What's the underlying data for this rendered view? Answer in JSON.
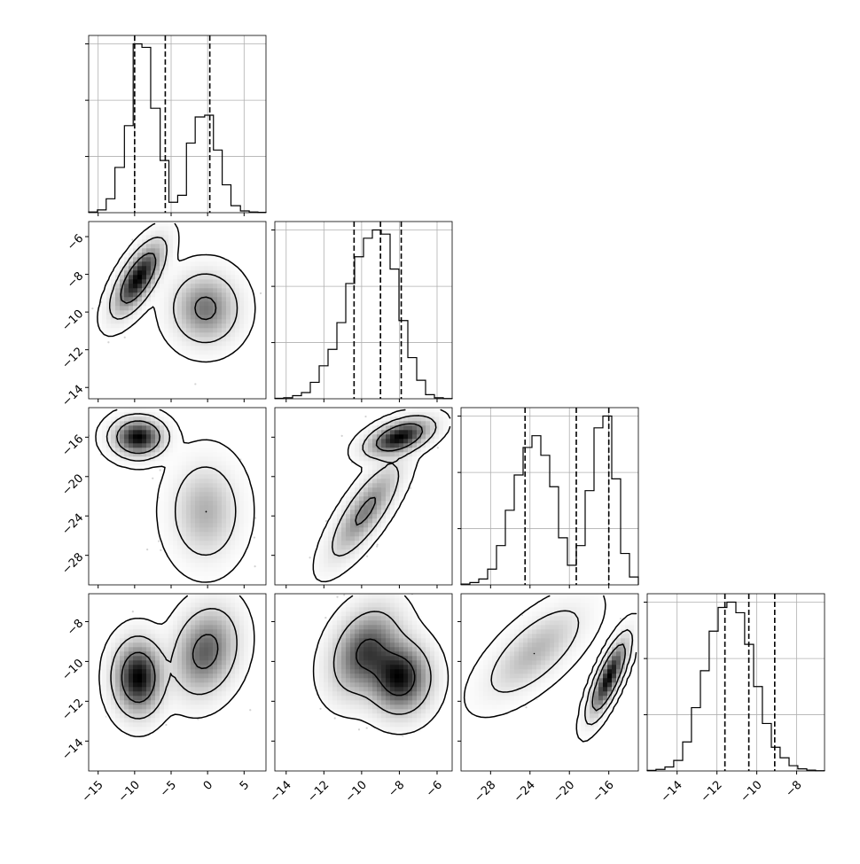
{
  "chart_data": {
    "type": "corner",
    "parameters": [
      {
        "index": 0,
        "range": [
          -16.3,
          8.0
        ],
        "ticks": [
          -15,
          -10,
          -5,
          0,
          5
        ],
        "tick_labels": [
          "−15",
          "−10",
          "−5",
          "0",
          "5"
        ],
        "quantiles": [
          -10.0,
          -5.8,
          0.3
        ]
      },
      {
        "index": 1,
        "range": [
          -14.6,
          -5.2
        ],
        "ticks": [
          -14,
          -12,
          -10,
          -8,
          -6
        ],
        "tick_labels": [
          "−14",
          "−12",
          "−10",
          "−8",
          "−6"
        ],
        "quantiles": [
          -10.4,
          -9.0,
          -7.9
        ]
      },
      {
        "index": 2,
        "range": [
          -31.0,
          -13.0
        ],
        "ticks": [
          -28,
          -24,
          -20,
          -16
        ],
        "tick_labels": [
          "−28",
          "−24",
          "−20",
          "−16"
        ],
        "quantiles": [
          -24.5,
          -19.3,
          -16.0
        ]
      },
      {
        "index": 3,
        "range": [
          -15.5,
          -6.6
        ],
        "ticks": [
          -14,
          -12,
          -10,
          -8
        ],
        "tick_labels": [
          "−14",
          "−12",
          "−10",
          "−8"
        ],
        "quantiles": [
          -11.6,
          -10.4,
          -9.1
        ]
      }
    ],
    "histograms": [
      {
        "param": 0,
        "bins": [
          -16.3,
          -15.1,
          -13.9,
          -12.7,
          -11.4,
          -10.2,
          -9.0,
          -7.8,
          -6.5,
          -5.3,
          -4.1,
          -2.9,
          -1.7,
          -0.4,
          0.8,
          2.0,
          3.2,
          4.5,
          5.7,
          6.9,
          8.0
        ],
        "counts": [
          2,
          8,
          40,
          130,
          250,
          485,
          475,
          300,
          150,
          30,
          50,
          200,
          275,
          280,
          180,
          80,
          20,
          5,
          2,
          1
        ]
      },
      {
        "param": 1,
        "bins": [
          -14.6,
          -14.13,
          -13.66,
          -13.19,
          -12.72,
          -12.25,
          -11.78,
          -11.31,
          -10.84,
          -10.37,
          -9.9,
          -9.43,
          -8.96,
          -8.49,
          -8.02,
          -7.55,
          -7.08,
          -6.61,
          -6.14,
          -5.67,
          -5.2
        ],
        "counts": [
          2,
          5,
          15,
          30,
          80,
          160,
          240,
          370,
          560,
          690,
          780,
          820,
          800,
          630,
          380,
          200,
          90,
          20,
          5,
          1
        ]
      },
      {
        "param": 2,
        "bins": [
          -31.0,
          -30.1,
          -29.2,
          -28.3,
          -27.4,
          -26.5,
          -25.6,
          -24.7,
          -23.8,
          -22.9,
          -22.0,
          -21.1,
          -20.2,
          -19.3,
          -18.4,
          -17.5,
          -16.6,
          -15.7,
          -14.8,
          -13.9,
          -13.0
        ],
        "counts": [
          2,
          6,
          15,
          40,
          100,
          190,
          280,
          350,
          380,
          330,
          250,
          120,
          50,
          100,
          240,
          400,
          430,
          270,
          80,
          20
        ]
      },
      {
        "param": 3,
        "bins": [
          -15.5,
          -15.06,
          -14.61,
          -14.17,
          -13.72,
          -13.28,
          -12.83,
          -12.39,
          -11.94,
          -11.5,
          -11.05,
          -10.61,
          -10.16,
          -9.72,
          -9.27,
          -8.83,
          -8.38,
          -7.94,
          -7.49,
          -7.05,
          -6.6
        ],
        "counts": [
          2,
          6,
          15,
          40,
          110,
          240,
          380,
          530,
          620,
          640,
          600,
          480,
          320,
          180,
          90,
          50,
          20,
          8,
          3,
          1
        ]
      }
    ],
    "pairs": [
      {
        "x_param": 0,
        "y_param": 1,
        "clusters": [
          {
            "cx": -9.5,
            "cy": -8.2,
            "sx": 1.8,
            "sy": 1.0,
            "rho": 0.7,
            "w": 0.52
          },
          {
            "cx": -0.3,
            "cy": -9.8,
            "sx": 2.4,
            "sy": 1.0,
            "rho": 0.0,
            "w": 0.48
          }
        ]
      },
      {
        "x_param": 0,
        "y_param": 2,
        "clusters": [
          {
            "cx": -9.5,
            "cy": -16.0,
            "sx": 1.8,
            "sy": 1.0,
            "rho": 0.0,
            "w": 0.52
          },
          {
            "cx": -0.3,
            "cy": -23.5,
            "sx": 2.4,
            "sy": 2.6,
            "rho": 0.0,
            "w": 0.48
          }
        ]
      },
      {
        "x_param": 1,
        "y_param": 2,
        "clusters": [
          {
            "cx": -8.0,
            "cy": -16.0,
            "sx": 0.9,
            "sy": 1.0,
            "rho": 0.5,
            "w": 0.52
          },
          {
            "cx": -9.8,
            "cy": -23.5,
            "sx": 1.0,
            "sy": 2.6,
            "rho": 0.8,
            "w": 0.48
          }
        ]
      },
      {
        "x_param": 0,
        "y_param": 3,
        "clusters": [
          {
            "cx": -9.5,
            "cy": -10.8,
            "sx": 1.8,
            "sy": 1.0,
            "rho": 0.0,
            "w": 0.52
          },
          {
            "cx": -0.3,
            "cy": -9.5,
            "sx": 2.4,
            "sy": 1.2,
            "rho": 0.2,
            "w": 0.48
          }
        ]
      },
      {
        "x_param": 1,
        "y_param": 3,
        "clusters": [
          {
            "cx": -8.0,
            "cy": -10.8,
            "sx": 0.9,
            "sy": 1.0,
            "rho": 0.0,
            "w": 0.52
          },
          {
            "cx": -9.8,
            "cy": -9.5,
            "sx": 1.0,
            "sy": 1.2,
            "rho": 0.3,
            "w": 0.48
          }
        ]
      },
      {
        "x_param": 2,
        "y_param": 3,
        "clusters": [
          {
            "cx": -16.0,
            "cy": -10.8,
            "sx": 1.0,
            "sy": 1.0,
            "rho": 0.8,
            "w": 0.52
          },
          {
            "cx": -23.5,
            "cy": -9.5,
            "sx": 2.6,
            "sy": 1.2,
            "rho": 0.7,
            "w": 0.48
          }
        ]
      }
    ],
    "contour_levels": [
      0.39,
      0.86,
      0.99
    ],
    "grid": true,
    "colors": {
      "line": "#000000",
      "grid": "#b0b0b0",
      "density_max": "#000000",
      "density_min": "#ffffff",
      "samples": "#7f7f7f"
    }
  }
}
